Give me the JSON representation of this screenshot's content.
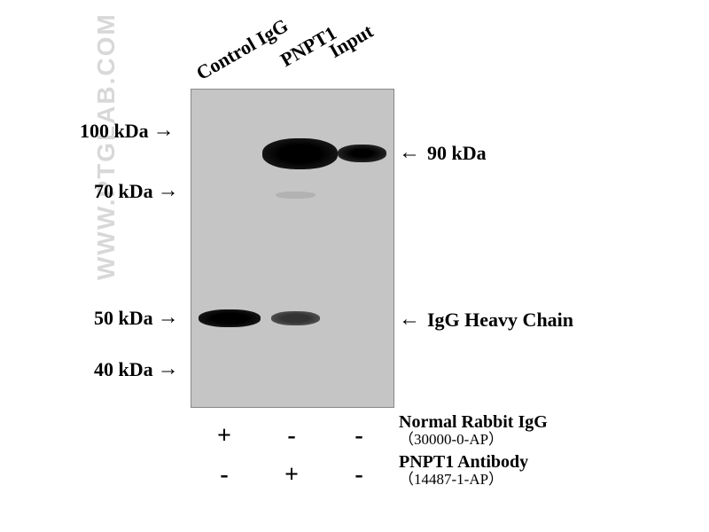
{
  "watermark": "WWW.PTGLAB.COM",
  "lanes": {
    "lane1": "Control IgG",
    "lane2": "PNPT1",
    "lane3": "Input"
  },
  "markers_left": {
    "m100": "100 kDa",
    "m70": "70 kDa",
    "m50": "50 kDa",
    "m40": "40 kDa"
  },
  "markers_right": {
    "m90": "90 kDa",
    "igg": "IgG Heavy Chain"
  },
  "conditions": {
    "row1": {
      "lane1": "+",
      "lane2": "-",
      "lane3": "-",
      "label": "Normal Rabbit IgG",
      "sublabel": "（30000-0-AP）"
    },
    "row2": {
      "lane1": "-",
      "lane2": "+",
      "lane3": "-",
      "label": "PNPT1 Antibody",
      "sublabel": "（14487-1-AP）"
    }
  },
  "blot": {
    "type": "western-blot-ip",
    "background_color": "#c5c5c5",
    "band_color": "#1a1a1a",
    "bands": [
      {
        "name": "90kDa-pnpt1",
        "lane": 2,
        "intensity": "strong"
      },
      {
        "name": "90kDa-input",
        "lane": 3,
        "intensity": "medium"
      },
      {
        "name": "igg-control",
        "lane": 1,
        "intensity": "strong"
      },
      {
        "name": "igg-pnpt1",
        "lane": 2,
        "intensity": "weak"
      },
      {
        "name": "faint-70",
        "lane": 2,
        "intensity": "very-weak"
      }
    ],
    "marker_positions_kda": [
      100,
      70,
      50,
      40
    ],
    "target_band_kda": 90
  },
  "styling": {
    "background_color": "#ffffff",
    "text_color": "#000000",
    "watermark_color": "#d8d8d8",
    "font_family": "Times New Roman",
    "label_fontsize": 22,
    "condition_fontsize": 28,
    "arrow_glyph": "→",
    "arrow_glyph_left": "←"
  }
}
